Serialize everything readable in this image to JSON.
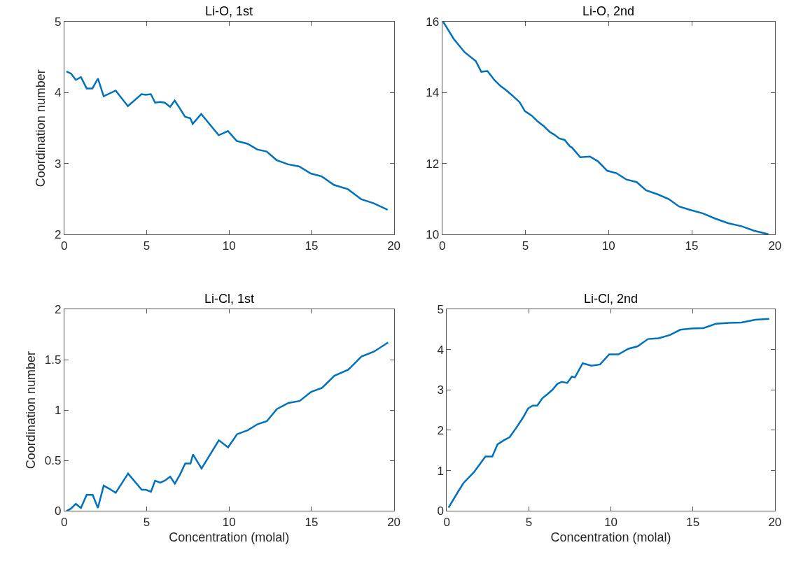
{
  "chart_data": [
    {
      "type": "line",
      "title": "Li-O, 1st",
      "ylabel": "Coordination number",
      "marker": "none",
      "line_style": "solid",
      "x": [
        0.13,
        0.41,
        0.7,
        1.01,
        1.36,
        1.71,
        2.04,
        2.39,
        3.12,
        3.86,
        4.69,
        4.94,
        5.25,
        5.51,
        5.81,
        6.1,
        6.42,
        6.7,
        7.01,
        7.33,
        7.65,
        7.79,
        8.31,
        9.37,
        9.93,
        10.46,
        11.12,
        11.71,
        12.28,
        12.88,
        13.58,
        14.26,
        14.96,
        15.62,
        16.36,
        17.21,
        18.01,
        18.78,
        19.62
      ],
      "series": [
        {
          "color": "#0072bd",
          "values": [
            4.3,
            4.27,
            4.18,
            4.22,
            4.06,
            4.06,
            4.2,
            3.95,
            4.03,
            3.81,
            3.98,
            3.97,
            3.98,
            3.86,
            3.87,
            3.86,
            3.8,
            3.89,
            3.78,
            3.66,
            3.64,
            3.56,
            3.7,
            3.4,
            3.46,
            3.32,
            3.28,
            3.2,
            3.17,
            3.05,
            2.99,
            2.96,
            2.86,
            2.82,
            2.7,
            2.64,
            2.5,
            2.44,
            2.35
          ]
        }
      ],
      "xlim": [
        0,
        20
      ],
      "xticks": [
        0,
        5,
        10,
        15,
        20
      ],
      "ylim": [
        2,
        5
      ],
      "yticks": [
        2,
        3,
        4,
        5
      ]
    },
    {
      "type": "line",
      "title": "Li-O, 2nd",
      "marker": "none",
      "line_style": "solid",
      "x": [
        0.06,
        0.69,
        1.35,
        2.02,
        2.35,
        2.72,
        3.15,
        3.5,
        3.85,
        4.27,
        4.66,
        4.97,
        5.39,
        5.74,
        6.1,
        6.45,
        6.73,
        7.04,
        7.36,
        7.67,
        7.81,
        8.3,
        8.88,
        9.35,
        9.92,
        10.48,
        11.08,
        11.69,
        12.25,
        12.98,
        13.62,
        14.24,
        14.94,
        15.65,
        16.42,
        17.19,
        18.03,
        18.74,
        19.61
      ],
      "series": [
        {
          "color": "#0072bd",
          "values": [
            16.0,
            15.52,
            15.14,
            14.89,
            14.59,
            14.61,
            14.35,
            14.19,
            14.07,
            13.9,
            13.73,
            13.48,
            13.35,
            13.19,
            13.06,
            12.9,
            12.82,
            12.71,
            12.67,
            12.49,
            12.45,
            12.18,
            12.2,
            12.07,
            11.8,
            11.73,
            11.55,
            11.48,
            11.25,
            11.13,
            11.0,
            10.79,
            10.69,
            10.6,
            10.45,
            10.32,
            10.23,
            10.11,
            10.01
          ]
        }
      ],
      "xlim": [
        0,
        20
      ],
      "xticks": [
        0,
        5,
        10,
        15,
        20
      ],
      "ylim": [
        10,
        16
      ],
      "yticks": [
        10,
        12,
        14,
        16
      ]
    },
    {
      "type": "line",
      "title": "Li-Cl, 1st",
      "xlabel": "Concentration (molal)",
      "ylabel": "Coordination number",
      "marker": "none",
      "line_style": "solid",
      "x": [
        0.13,
        0.38,
        0.7,
        1.01,
        1.36,
        1.72,
        2.04,
        2.39,
        2.73,
        3.12,
        3.87,
        4.7,
        4.95,
        5.26,
        5.51,
        5.82,
        6.1,
        6.43,
        6.71,
        7.02,
        7.34,
        7.66,
        7.81,
        8.33,
        9.38,
        9.94,
        10.48,
        11.14,
        11.73,
        12.29,
        12.9,
        13.6,
        14.28,
        14.98,
        15.64,
        16.39,
        17.23,
        18.03,
        18.8,
        19.65
      ],
      "series": [
        {
          "color": "#0072bd",
          "values": [
            0.0,
            0.02,
            0.07,
            0.03,
            0.16,
            0.16,
            0.03,
            0.25,
            0.22,
            0.18,
            0.37,
            0.21,
            0.21,
            0.19,
            0.3,
            0.28,
            0.3,
            0.34,
            0.27,
            0.36,
            0.47,
            0.47,
            0.56,
            0.42,
            0.7,
            0.63,
            0.76,
            0.8,
            0.86,
            0.89,
            1.01,
            1.07,
            1.09,
            1.18,
            1.22,
            1.34,
            1.4,
            1.53,
            1.58,
            1.67
          ]
        }
      ],
      "xlim": [
        0,
        20
      ],
      "xticks": [
        0,
        5,
        10,
        15,
        20
      ],
      "ylim": [
        0,
        2
      ],
      "yticks": [
        0,
        0.5,
        1,
        1.5,
        2
      ]
    },
    {
      "type": "line",
      "title": "Li-Cl, 2nd",
      "xlabel": "Concentration (molal)",
      "marker": "none",
      "line_style": "solid",
      "x": [
        0.1,
        0.66,
        1.01,
        1.65,
        2.35,
        2.77,
        3.09,
        3.47,
        3.83,
        4.25,
        4.64,
        4.95,
        5.23,
        5.51,
        5.82,
        6.15,
        6.43,
        6.74,
        7.02,
        7.34,
        7.62,
        7.81,
        8.28,
        8.82,
        9.34,
        9.9,
        10.46,
        11.07,
        11.63,
        12.26,
        12.9,
        13.6,
        14.23,
        14.94,
        15.64,
        16.41,
        17.19,
        17.96,
        18.8,
        19.65
      ],
      "series": [
        {
          "color": "#0072bd",
          "values": [
            0.08,
            0.46,
            0.69,
            0.96,
            1.35,
            1.35,
            1.65,
            1.75,
            1.83,
            2.07,
            2.31,
            2.54,
            2.61,
            2.61,
            2.79,
            2.9,
            3.0,
            3.15,
            3.2,
            3.17,
            3.33,
            3.31,
            3.66,
            3.6,
            3.63,
            3.88,
            3.88,
            4.02,
            4.08,
            4.26,
            4.28,
            4.36,
            4.49,
            4.52,
            4.53,
            4.64,
            4.66,
            4.67,
            4.74,
            4.76
          ]
        }
      ],
      "xlim": [
        0,
        20
      ],
      "xticks": [
        0,
        5,
        10,
        15,
        20
      ],
      "ylim": [
        0,
        5
      ],
      "yticks": [
        0,
        1,
        2,
        3,
        4,
        5
      ]
    }
  ]
}
